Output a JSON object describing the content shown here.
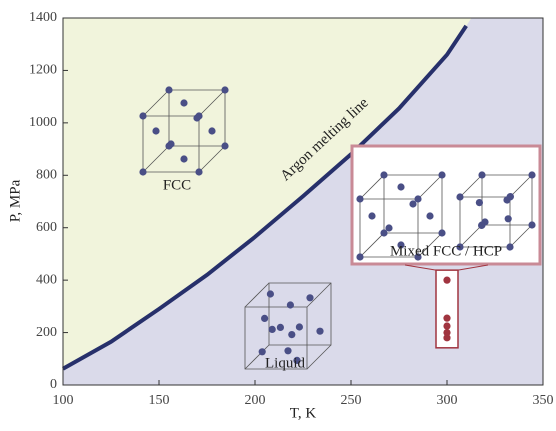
{
  "chart_data": {
    "type": "line",
    "x_label": "T, K",
    "y_label": "P, MPa",
    "xlim": [
      100,
      350
    ],
    "xticks": [
      100,
      150,
      200,
      250,
      300,
      350
    ],
    "ylim": [
      0,
      1400
    ],
    "yticks": [
      0,
      200,
      400,
      600,
      800,
      1000,
      1200,
      1400
    ],
    "x": [
      100,
      125,
      150,
      175,
      200,
      225,
      250,
      275,
      300,
      310
    ],
    "series": [
      {
        "name": "Argon melting line",
        "color": "#27306b",
        "values": [
          62,
          165,
          290,
          420,
          565,
          720,
          880,
          1055,
          1260,
          1370
        ]
      }
    ],
    "points": {
      "color": "#a0343f",
      "x": [
        300,
        300,
        300,
        300,
        300
      ],
      "values": [
        400,
        255,
        225,
        200,
        180
      ]
    },
    "solid_color": "#f1f4dc",
    "liquid_color": "#dadaea",
    "annotations": {
      "fcc": "FCC",
      "liquid": "Liquid",
      "mixed": "Mixed FCC / HCP"
    }
  }
}
